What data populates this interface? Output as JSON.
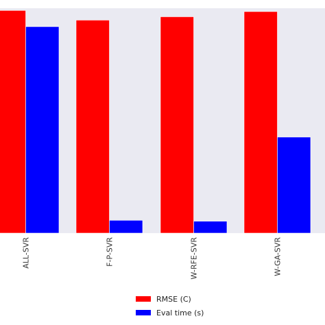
{
  "chart_data": {
    "type": "bar",
    "categories": [
      "ALL-SVR",
      "F-P-SVR",
      "W-RFE-SVR",
      "W-GA-SVR"
    ],
    "series": [
      {
        "name": "RMSE (C)",
        "color": "#ff0000",
        "values": [
          0.99,
          0.947,
          0.962,
          0.985
        ]
      },
      {
        "name": "Eval time (s)",
        "color": "#0000ff",
        "values": [
          0.918,
          0.057,
          0.053,
          0.427
        ]
      }
    ],
    "ylim": [
      0,
      1.0
    ],
    "grid": false,
    "background": "#eaeaf2",
    "legend_position": "bottom-center",
    "title": "",
    "xlabel": "",
    "ylabel": ""
  }
}
